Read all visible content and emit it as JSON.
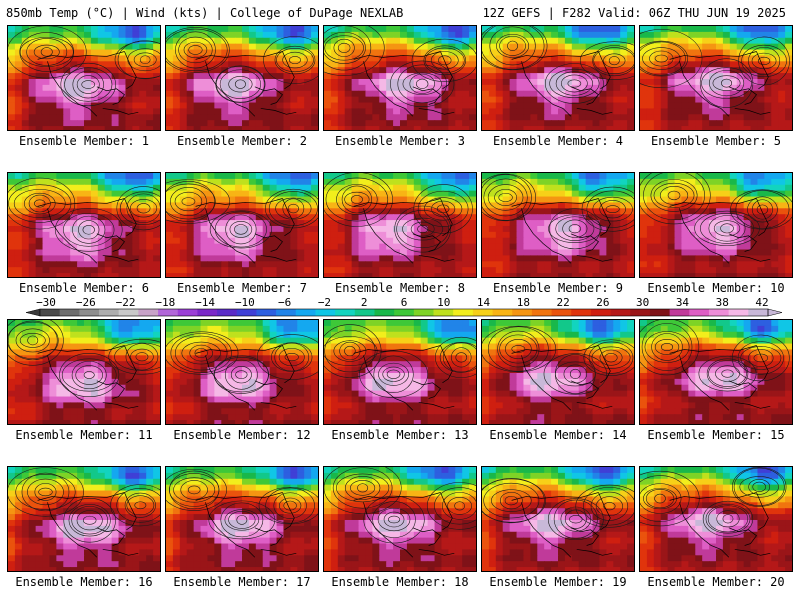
{
  "header": {
    "left": "850mb Temp (°C) | Wind (kts) | College of DuPage NEXLAB",
    "right": "12Z GEFS | F282 Valid: 06Z THU JUN 19 2025"
  },
  "legend": {
    "ticks": [
      "−30",
      "−26",
      "−22",
      "−18",
      "−14",
      "−10",
      "−6",
      "−2",
      "2",
      "6",
      "10",
      "14",
      "18",
      "22",
      "26",
      "30",
      "34",
      "38",
      "42"
    ],
    "colors": [
      "#4a4a4a",
      "#6e6e6e",
      "#8e8e8e",
      "#adadad",
      "#c9c9c9",
      "#c8a2c8",
      "#b266d9",
      "#9b3fd6",
      "#7a28c8",
      "#5a2bc7",
      "#3f3fd6",
      "#2d5fe0",
      "#2184e8",
      "#14a8f0",
      "#10c6e6",
      "#12d4bf",
      "#12c88a",
      "#19b84a",
      "#3ec838",
      "#7ed326",
      "#bfe11d",
      "#f2ee1c",
      "#f7d018",
      "#f8b415",
      "#f59512",
      "#f0740f",
      "#ea530d",
      "#e0340c",
      "#cf1f10",
      "#b51818",
      "#9a1518",
      "#7f1218",
      "#c03a9a",
      "#de5ec5",
      "#ee8ed8",
      "#f5b8e6",
      "#c8b8d8"
    ]
  },
  "members": [
    {
      "label": "Ensemble Member: 1"
    },
    {
      "label": "Ensemble Member: 2"
    },
    {
      "label": "Ensemble Member: 3"
    },
    {
      "label": "Ensemble Member: 4"
    },
    {
      "label": "Ensemble Member: 5"
    },
    {
      "label": "Ensemble Member: 6"
    },
    {
      "label": "Ensemble Member: 7"
    },
    {
      "label": "Ensemble Member: 8"
    },
    {
      "label": "Ensemble Member: 9"
    },
    {
      "label": "Ensemble Member: 10"
    },
    {
      "label": "Ensemble Member: 11"
    },
    {
      "label": "Ensemble Member: 12"
    },
    {
      "label": "Ensemble Member: 13"
    },
    {
      "label": "Ensemble Member: 14"
    },
    {
      "label": "Ensemble Member: 15"
    },
    {
      "label": "Ensemble Member: 16"
    },
    {
      "label": "Ensemble Member: 17"
    },
    {
      "label": "Ensemble Member: 18"
    },
    {
      "label": "Ensemble Member: 19"
    },
    {
      "label": "Ensemble Member: 20"
    }
  ]
}
